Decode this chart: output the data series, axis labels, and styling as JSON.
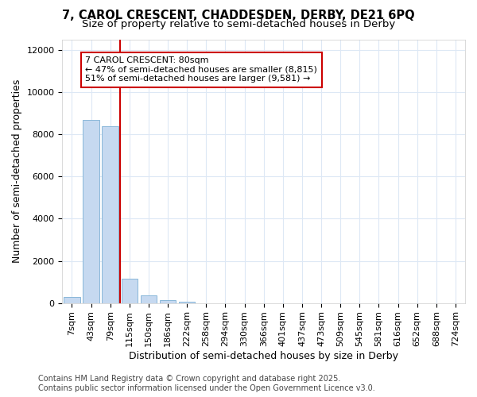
{
  "title_line1": "7, CAROL CRESCENT, CHADDESDEN, DERBY, DE21 6PQ",
  "title_line2": "Size of property relative to semi-detached houses in Derby",
  "xlabel": "Distribution of semi-detached houses by size in Derby",
  "ylabel": "Number of semi-detached properties",
  "categories": [
    "7sqm",
    "43sqm",
    "79sqm",
    "115sqm",
    "150sqm",
    "186sqm",
    "222sqm",
    "258sqm",
    "294sqm",
    "330sqm",
    "366sqm",
    "401sqm",
    "437sqm",
    "473sqm",
    "509sqm",
    "545sqm",
    "581sqm",
    "616sqm",
    "652sqm",
    "688sqm",
    "724sqm"
  ],
  "bar_values": [
    270,
    8700,
    8400,
    1150,
    380,
    130,
    60,
    0,
    0,
    0,
    0,
    0,
    0,
    0,
    0,
    0,
    0,
    0,
    0,
    0,
    0
  ],
  "bar_color": "#c6d9f0",
  "bar_edge_color": "#7bafd4",
  "bar_width": 0.85,
  "vline_position": 2.5,
  "vline_color": "#cc0000",
  "annotation_title": "7 CAROL CRESCENT: 80sqm",
  "annotation_line2": "← 47% of semi-detached houses are smaller (8,815)",
  "annotation_line3": "51% of semi-detached houses are larger (9,581) →",
  "annotation_box_color": "#ffffff",
  "annotation_box_edge": "#cc0000",
  "ylim": [
    0,
    12500
  ],
  "yticks": [
    0,
    2000,
    4000,
    6000,
    8000,
    10000,
    12000
  ],
  "footnote1": "Contains HM Land Registry data © Crown copyright and database right 2025.",
  "footnote2": "Contains public sector information licensed under the Open Government Licence v3.0.",
  "bg_color": "#ffffff",
  "plot_bg_color": "#ffffff",
  "grid_color": "#dde8f5",
  "title_fontsize": 10.5,
  "subtitle_fontsize": 9.5,
  "axis_label_fontsize": 9,
  "tick_fontsize": 8,
  "annotation_fontsize": 8,
  "footnote_fontsize": 7
}
